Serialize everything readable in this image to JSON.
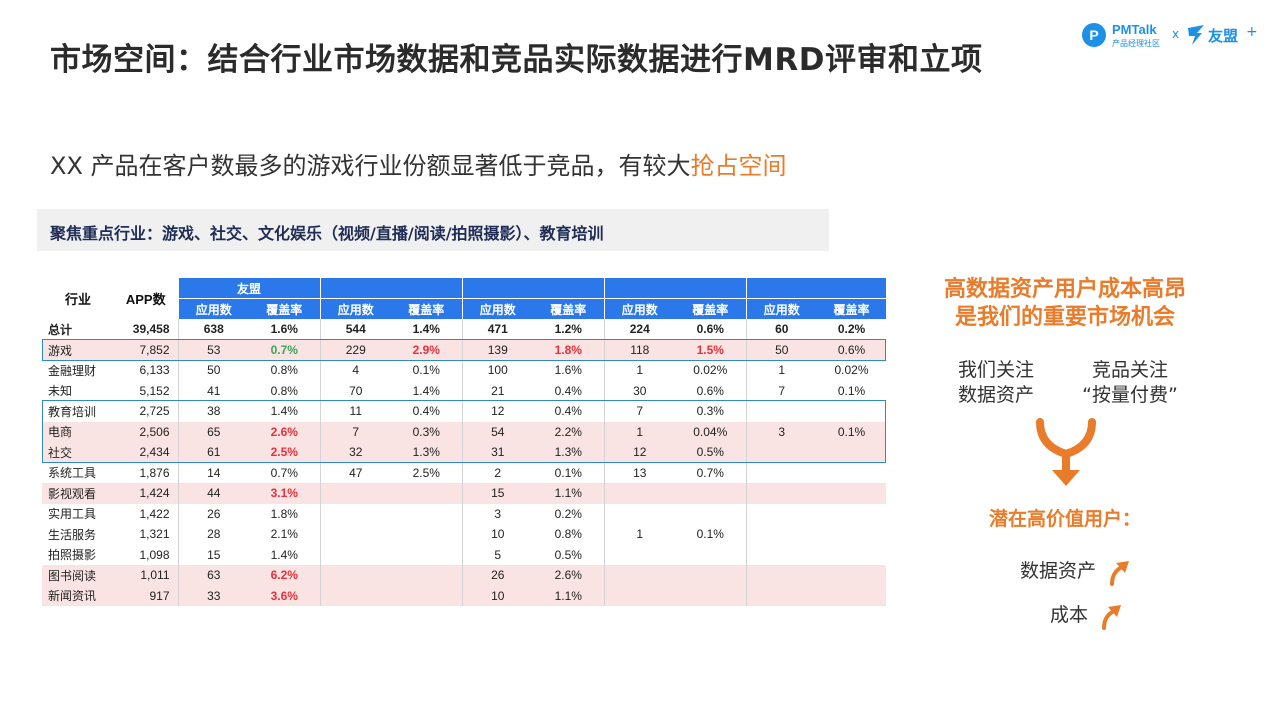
{
  "title": "市场空间：结合行业市场数据和竞品实际数据进行MRD评审和立项",
  "logo": {
    "pm_badge": "P",
    "pm_name": "PMTalk",
    "pm_sub": "产品经理社区",
    "x": "x",
    "partner": "友盟",
    "plus": "+"
  },
  "subtitle": {
    "main": "XX 产品在客户数最多的游戏行业份额显著低于竞品，有较大",
    "highlight": "抢占空间"
  },
  "focus": "聚焦重点行业：游戏、社交、文化娱乐（视频/直播/阅读/拍照摄影）、教育培训",
  "table": {
    "header": {
      "industry": "行业",
      "app_count": "APP数",
      "group1": "友盟",
      "apps": "应用数",
      "coverage": "覆盖率"
    },
    "rows": [
      {
        "name": "总计",
        "app": "39,458",
        "v": [
          "638",
          "1.6%",
          "544",
          "1.4%",
          "471",
          "1.2%",
          "224",
          "0.6%",
          "60",
          "0.2%"
        ]
      },
      {
        "name": "游戏",
        "app": "7,852",
        "v": [
          "53",
          "0.7%",
          "229",
          "2.9%",
          "139",
          "1.8%",
          "118",
          "1.5%",
          "50",
          "0.6%"
        ]
      },
      {
        "name": "金融理财",
        "app": "6,133",
        "v": [
          "50",
          "0.8%",
          "4",
          "0.1%",
          "100",
          "1.6%",
          "1",
          "0.02%",
          "1",
          "0.02%"
        ]
      },
      {
        "name": "未知",
        "app": "5,152",
        "v": [
          "41",
          "0.8%",
          "70",
          "1.4%",
          "21",
          "0.4%",
          "30",
          "0.6%",
          "7",
          "0.1%"
        ]
      },
      {
        "name": "教育培训",
        "app": "2,725",
        "v": [
          "38",
          "1.4%",
          "11",
          "0.4%",
          "12",
          "0.4%",
          "7",
          "0.3%",
          "",
          ""
        ]
      },
      {
        "name": "电商",
        "app": "2,506",
        "v": [
          "65",
          "2.6%",
          "7",
          "0.3%",
          "54",
          "2.2%",
          "1",
          "0.04%",
          "3",
          "0.1%"
        ]
      },
      {
        "name": "社交",
        "app": "2,434",
        "v": [
          "61",
          "2.5%",
          "32",
          "1.3%",
          "31",
          "1.3%",
          "12",
          "0.5%",
          "",
          ""
        ]
      },
      {
        "name": "系统工具",
        "app": "1,876",
        "v": [
          "14",
          "0.7%",
          "47",
          "2.5%",
          "2",
          "0.1%",
          "13",
          "0.7%",
          "",
          ""
        ]
      },
      {
        "name": "影视观看",
        "app": "1,424",
        "v": [
          "44",
          "3.1%",
          "",
          "",
          "15",
          "1.1%",
          "",
          "",
          "",
          ""
        ]
      },
      {
        "name": "实用工具",
        "app": "1,422",
        "v": [
          "26",
          "1.8%",
          "",
          "",
          "3",
          "0.2%",
          "",
          "",
          "",
          ""
        ]
      },
      {
        "name": "生活服务",
        "app": "1,321",
        "v": [
          "28",
          "2.1%",
          "",
          "",
          "10",
          "0.8%",
          "1",
          "0.1%",
          "",
          ""
        ]
      },
      {
        "name": "拍照摄影",
        "app": "1,098",
        "v": [
          "15",
          "1.4%",
          "",
          "",
          "5",
          "0.5%",
          "",
          "",
          "",
          ""
        ]
      },
      {
        "name": "图书阅读",
        "app": "1,011",
        "v": [
          "63",
          "6.2%",
          "",
          "",
          "26",
          "2.6%",
          "",
          "",
          "",
          ""
        ]
      },
      {
        "name": "新闻资讯",
        "app": "917",
        "v": [
          "33",
          "3.6%",
          "",
          "",
          "10",
          "1.1%",
          "",
          "",
          "",
          ""
        ]
      }
    ]
  },
  "right": {
    "headline_1": "高数据资产用户成本高昂",
    "headline_2": "是我们的重要市场机会",
    "our_focus_1": "我们关注",
    "our_focus_2": "数据资产",
    "comp_focus_1": "竞品关注",
    "comp_focus_2": "“按量付费”",
    "potential": "潜在高价值用户：",
    "item_1": "数据资产",
    "item_2": "成本"
  },
  "colors": {
    "accent": "#e87c2b",
    "table_header": "#2b78ea",
    "highlight_red": "#e8313a",
    "highlight_green": "#3aa655",
    "box_border": "#2e8bc0",
    "row_pink": "#f9e3e3"
  }
}
